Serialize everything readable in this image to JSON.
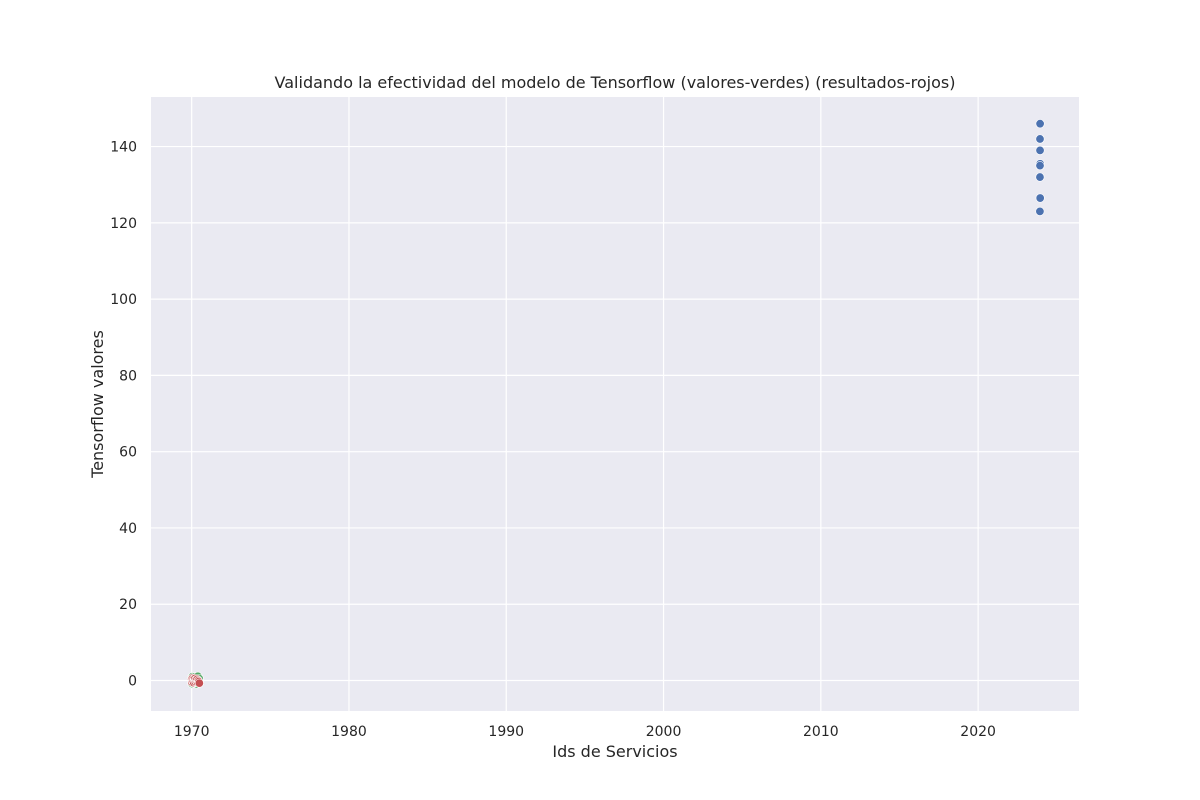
{
  "chart_data": {
    "type": "scatter",
    "title": "Validando la efectividad del modelo de Tensorflow (valores-verdes) (resultados-rojos)",
    "xlabel": "Ids de Servicios",
    "ylabel": "Tensorflow valores",
    "x_scale": "date",
    "xlim": [
      "1967-06-01",
      "2026-06-01"
    ],
    "ylim": [
      -8,
      153
    ],
    "x_ticks": [
      "1970",
      "1980",
      "1990",
      "2000",
      "2010",
      "2020"
    ],
    "y_ticks": [
      "0",
      "20",
      "40",
      "60",
      "80",
      "100",
      "120",
      "140"
    ],
    "grid": true,
    "series": [
      {
        "color": "#4c72b0",
        "points": [
          {
            "x": "2023-12-10",
            "y": 146
          },
          {
            "x": "2023-12-12",
            "y": 142
          },
          {
            "x": "2023-12-08",
            "y": 142
          },
          {
            "x": "2023-12-09",
            "y": 139
          },
          {
            "x": "2023-12-11",
            "y": 135.5
          },
          {
            "x": "2023-12-08",
            "y": 135
          },
          {
            "x": "2023-12-07",
            "y": 132
          },
          {
            "x": "2023-12-12",
            "y": 126.5
          },
          {
            "x": "2023-12-06",
            "y": 123
          }
        ]
      },
      {
        "color": "#55a868",
        "points": [
          {
            "x": "1970-01-01",
            "y": 0.8
          },
          {
            "x": "1970-01-05",
            "y": -0.8
          },
          {
            "x": "1970-01-10",
            "y": 0.2
          },
          {
            "x": "1970-01-20",
            "y": 1.0
          },
          {
            "x": "1970-01-25",
            "y": -0.5
          },
          {
            "x": "1970-02-05",
            "y": 0.6
          },
          {
            "x": "1970-02-15",
            "y": -0.3
          },
          {
            "x": "1970-02-25",
            "y": 0.9
          },
          {
            "x": "1970-03-10",
            "y": -0.7
          },
          {
            "x": "1970-03-20",
            "y": 0.4
          },
          {
            "x": "1970-04-01",
            "y": -0.2
          },
          {
            "x": "1970-04-15",
            "y": 0.7
          },
          {
            "x": "1970-04-25",
            "y": -0.9
          },
          {
            "x": "1970-05-10",
            "y": 0.3
          },
          {
            "x": "1970-05-25",
            "y": 1.1
          },
          {
            "x": "1970-06-10",
            "y": -0.4
          },
          {
            "x": "1970-06-25",
            "y": 0.5
          },
          {
            "x": "1970-07-05",
            "y": -0.6
          }
        ]
      },
      {
        "color": "#c44e52",
        "points": [
          {
            "x": "1970-01-01",
            "y": 0.3
          },
          {
            "x": "1970-01-08",
            "y": -0.5
          },
          {
            "x": "1970-01-18",
            "y": 0.6
          },
          {
            "x": "1970-01-28",
            "y": -0.2
          },
          {
            "x": "1970-02-10",
            "y": 0.4
          },
          {
            "x": "1970-02-20",
            "y": -0.6
          },
          {
            "x": "1970-03-05",
            "y": 0.1
          },
          {
            "x": "1970-03-15",
            "y": 0.5
          },
          {
            "x": "1970-03-28",
            "y": -0.4
          },
          {
            "x": "1970-04-10",
            "y": 0.2
          },
          {
            "x": "1970-04-20",
            "y": -0.1
          },
          {
            "x": "1970-05-05",
            "y": 0.3
          },
          {
            "x": "1970-05-18",
            "y": -0.5
          },
          {
            "x": "1970-06-01",
            "y": 0.0
          },
          {
            "x": "1970-06-15",
            "y": -0.3
          },
          {
            "x": "1970-06-28",
            "y": -0.7
          }
        ]
      }
    ]
  }
}
